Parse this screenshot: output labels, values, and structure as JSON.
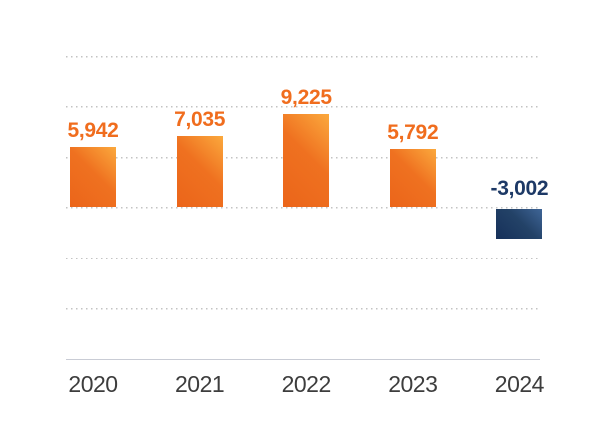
{
  "chart_data": {
    "type": "bar",
    "title": "",
    "xlabel": "",
    "ylabel": "",
    "categories": [
      "2020",
      "2021",
      "2022",
      "2023",
      "2024"
    ],
    "values": [
      5942,
      7035,
      9225,
      5792,
      -3002
    ],
    "value_labels": [
      "5,942",
      "7,035",
      "9,225",
      "5,792",
      "-3,002"
    ],
    "ylim": [
      -10000,
      15000
    ],
    "gridline_values": [
      15000,
      10000,
      5000,
      0,
      -5000,
      -10000
    ],
    "grid": "horizontal-dotted",
    "legend_position": "none",
    "y_tick_labels_visible": false,
    "styles": {
      "positive_bar_gradient": [
        "#eb651a",
        "#ef7120",
        "#fba93d"
      ],
      "negative_bar_gradient": [
        "#16305a",
        "#234267",
        "#3f6597"
      ],
      "positive_label_color": "#f06d1e",
      "negative_label_color": "#1d3966",
      "axis_label_color": "#3d3d3d",
      "gridline_color": "#c3c3c3",
      "axis_line_color": "#c9ccd5",
      "background": "#ffffff"
    }
  }
}
